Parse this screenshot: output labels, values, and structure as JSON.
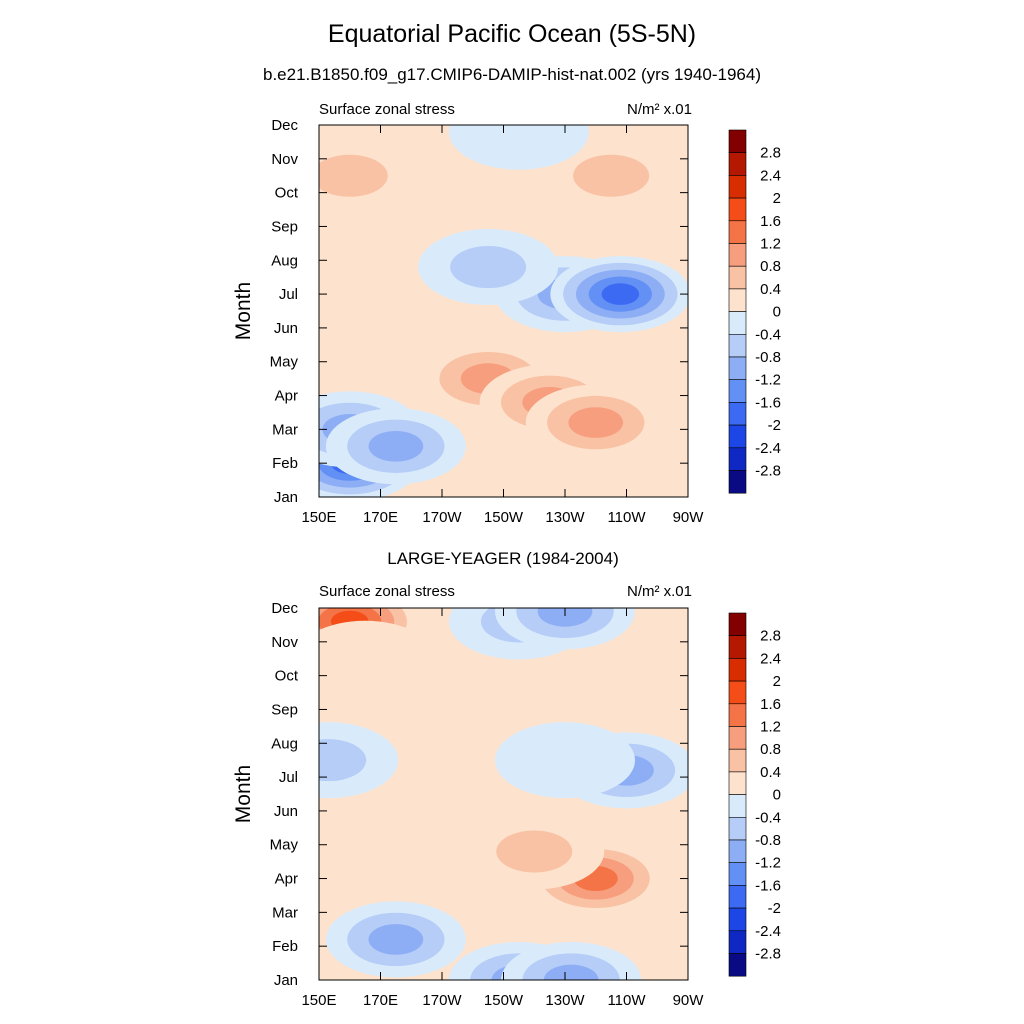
{
  "page": {
    "title": "Equatorial Pacific Ocean (5S-5N)",
    "subtitle": "b.e21.B1850.f09_g17.CMIP6-DAMIP-hist-nat.002 (yrs 1940-1964)"
  },
  "chart_data": [
    {
      "type": "heatmap",
      "title": "",
      "left_label": "Surface zonal stress",
      "right_label": "N/m² x.01",
      "xlabel": "",
      "ylabel": "Month",
      "x_tick_labels": [
        "150E",
        "170E",
        "170W",
        "150W",
        "130W",
        "110W",
        "90W"
      ],
      "y_tick_labels": [
        "Jan",
        "Feb",
        "Mar",
        "Apr",
        "May",
        "Jun",
        "Jul",
        "Aug",
        "Sep",
        "Oct",
        "Nov",
        "Dec"
      ],
      "x_range_deg_east": [
        150,
        270
      ],
      "y_range_month": [
        1,
        12
      ],
      "features": [
        {
          "lon": 160,
          "month": 2,
          "value": -2.0
        },
        {
          "lon": 160,
          "month": 3,
          "value": -1.0
        },
        {
          "lon": 175,
          "month": 2.5,
          "value": -1.2
        },
        {
          "lon": 205,
          "month": 4.5,
          "value": 1.2
        },
        {
          "lon": 225,
          "month": 3.8,
          "value": 1.2
        },
        {
          "lon": 240,
          "month": 3.2,
          "value": 1.0
        },
        {
          "lon": 230,
          "month": 7,
          "value": -1.4
        },
        {
          "lon": 248,
          "month": 7,
          "value": -2.0
        },
        {
          "lon": 205,
          "month": 7.8,
          "value": -0.8
        },
        {
          "lon": 160,
          "month": 10.5,
          "value": 0.8
        },
        {
          "lon": 245,
          "month": 10.5,
          "value": 0.7
        },
        {
          "lon": 215,
          "month": 11.8,
          "value": -0.3
        }
      ]
    },
    {
      "type": "heatmap",
      "title": "LARGE-YEAGER (1984-2004)",
      "left_label": "Surface zonal stress",
      "right_label": "N/m² x.01",
      "xlabel": "",
      "ylabel": "Month",
      "x_tick_labels": [
        "150E",
        "170E",
        "170W",
        "150W",
        "130W",
        "110W",
        "90W"
      ],
      "y_tick_labels": [
        "Jan",
        "Feb",
        "Mar",
        "Apr",
        "May",
        "Jun",
        "Jul",
        "Aug",
        "Sep",
        "Oct",
        "Nov",
        "Dec"
      ],
      "x_range_deg_east": [
        150,
        270
      ],
      "y_range_month": [
        1,
        12
      ],
      "features": [
        {
          "lon": 160,
          "month": 11.6,
          "value": 1.8
        },
        {
          "lon": 165,
          "month": 10.5,
          "value": 0.6
        },
        {
          "lon": 215,
          "month": 11.6,
          "value": -0.8
        },
        {
          "lon": 230,
          "month": 11.9,
          "value": -1.2
        },
        {
          "lon": 225,
          "month": 9.3,
          "value": 0.6
        },
        {
          "lon": 153,
          "month": 7.5,
          "value": -0.8
        },
        {
          "lon": 250,
          "month": 7.2,
          "value": -1.2
        },
        {
          "lon": 230,
          "month": 7.5,
          "value": -0.6
        },
        {
          "lon": 240,
          "month": 4,
          "value": 1.6
        },
        {
          "lon": 220,
          "month": 4.8,
          "value": 0.8
        },
        {
          "lon": 175,
          "month": 2.2,
          "value": -1.0
        },
        {
          "lon": 215,
          "month": 1.0,
          "value": -1.4
        },
        {
          "lon": 232,
          "month": 1.0,
          "value": -1.0
        }
      ]
    }
  ],
  "colorbar": {
    "labels": [
      "2.8",
      "2.4",
      "2",
      "1.6",
      "1.2",
      "0.8",
      "0.4",
      "0",
      "-0.4",
      "-0.8",
      "-1.2",
      "-1.6",
      "-2",
      "-2.4",
      "-2.8"
    ],
    "colors_top_to_bottom": [
      "#830000",
      "#b41800",
      "#d72d00",
      "#f44d18",
      "#f47448",
      "#f79e7e",
      "#f9c2a4",
      "#fde2cd",
      "#d9ebfb",
      "#b5cdf7",
      "#8daef5",
      "#6290f4",
      "#3c6af2",
      "#1d46e6",
      "#0f28c3",
      "#0a0a85"
    ]
  }
}
